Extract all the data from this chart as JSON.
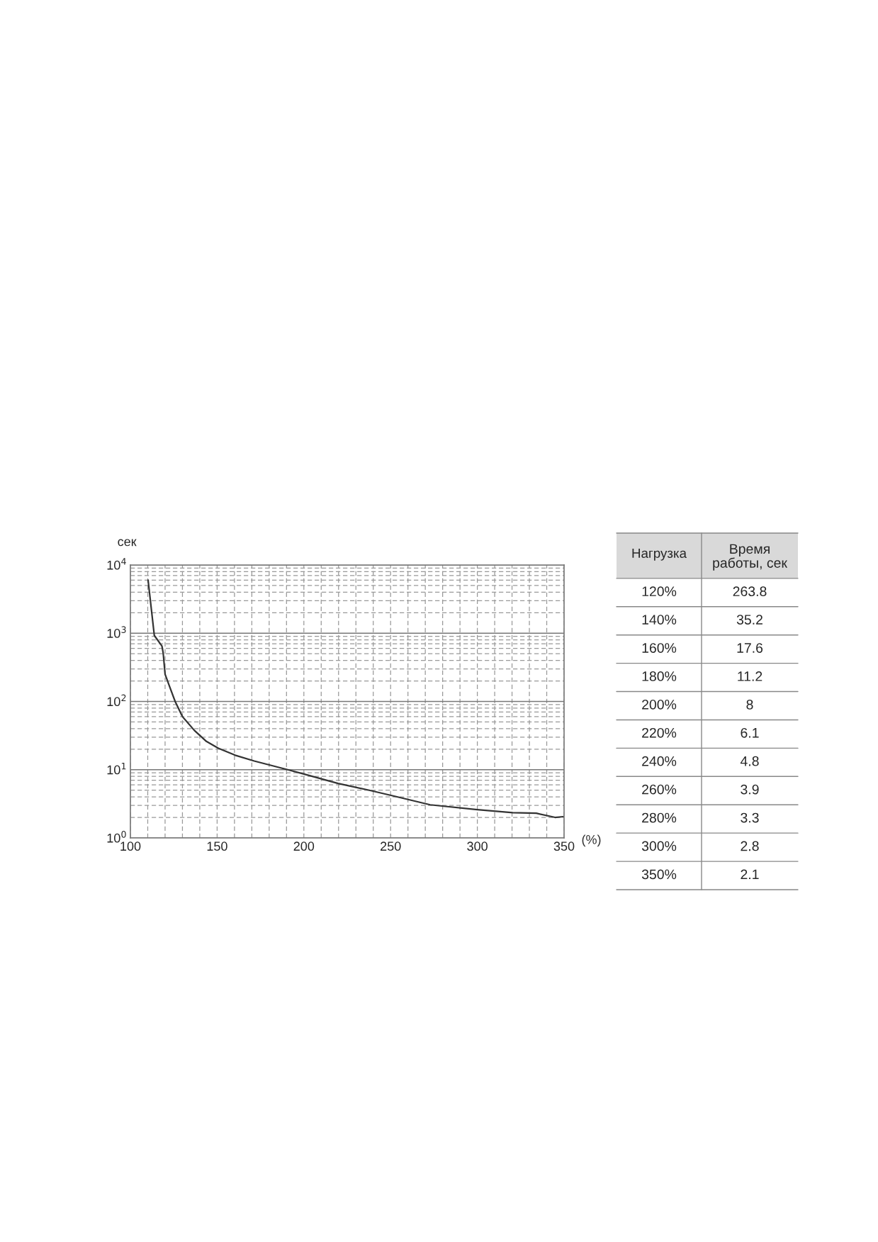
{
  "chart_data": [
    {
      "type": "line",
      "ylabel": "сек",
      "xlabel": "(%)",
      "log": "y",
      "grid": true,
      "xlim": [
        100,
        350
      ],
      "ylim": [
        1,
        10000
      ],
      "xticks": [
        100,
        150,
        200,
        250,
        300,
        350
      ],
      "yticks": [
        {
          "value": 1,
          "label": "10$^{0}$"
        },
        {
          "value": 10,
          "label": "10$^{1}$"
        },
        {
          "value": 100,
          "label": "10$^{2}$"
        },
        {
          "value": 1000,
          "label": "10$^{3}$"
        },
        {
          "value": 10000,
          "label": "10$^{4}$"
        }
      ],
      "series": [
        {
          "color": "#333333",
          "x": [
            110.2,
            113.8,
            118.2,
            118.9,
            120,
            123,
            125.8,
            130,
            136.9,
            143.8,
            150.7,
            160.4,
            171.4,
            190.7,
            200.4,
            219.7,
            237.7,
            252,
            272.8,
            300,
            320.4,
            334,
            344.8,
            349.5
          ],
          "values": [
            6000,
            925,
            647,
            515,
            250,
            155,
            100,
            60,
            37.6,
            26,
            20.6,
            16.3,
            13.4,
            10,
            8.6,
            6.3,
            5,
            4.1,
            3.06,
            2.6,
            2.35,
            2.3,
            2.0,
            2.05
          ]
        }
      ]
    },
    {
      "type": "heatmap",
      "ylabel": "Нагрузка",
      "data_labels": true,
      "categories": [
        "Время\nработы, сек"
      ],
      "y_categories": [
        "120%",
        "140%",
        "160%",
        "180%",
        "200%",
        "220%",
        "240%",
        "260%",
        "280%",
        "300%",
        "350%"
      ],
      "cells": [
        [
          263.8
        ],
        [
          35.2
        ],
        [
          17.6
        ],
        [
          11.2
        ],
        [
          8
        ],
        [
          6.1
        ],
        [
          4.8
        ],
        [
          3.9
        ],
        [
          3.3
        ],
        [
          2.8
        ],
        [
          2.1
        ]
      ]
    }
  ]
}
